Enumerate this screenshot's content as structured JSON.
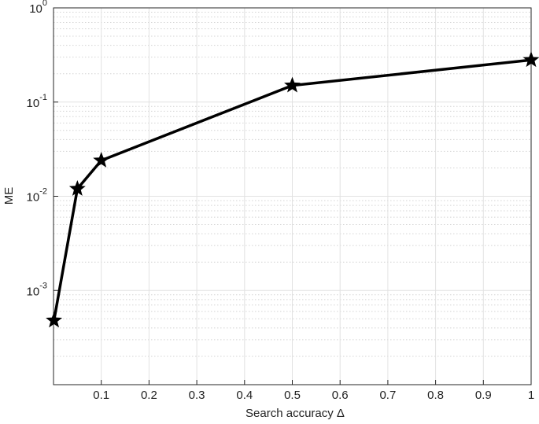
{
  "chart_data": {
    "type": "line",
    "xlabel": "Search accuracy  Δ",
    "ylabel": "ME",
    "x": [
      0.001,
      0.05,
      0.1,
      0.5,
      1
    ],
    "series": [
      {
        "name": "ME",
        "color": "#000000",
        "values": [
          0.00048,
          0.012,
          0.024,
          0.15,
          0.28
        ]
      }
    ],
    "xlim": [
      0,
      1
    ],
    "xticks": [
      0.1,
      0.2,
      0.3,
      0.4,
      0.5,
      0.6,
      0.7,
      0.8,
      0.9,
      1
    ],
    "ylim": [
      0.0001,
      1
    ],
    "log_y": true,
    "grid": true,
    "minor_grid": true,
    "marker": "star",
    "yticks": [
      {
        "value": 0.001,
        "label": "10",
        "exponent": "-3"
      },
      {
        "value": 0.01,
        "label": "10",
        "exponent": "-2"
      },
      {
        "value": 0.1,
        "label": "10",
        "exponent": "-1"
      },
      {
        "value": 1,
        "label": "10",
        "exponent": "0"
      }
    ]
  }
}
